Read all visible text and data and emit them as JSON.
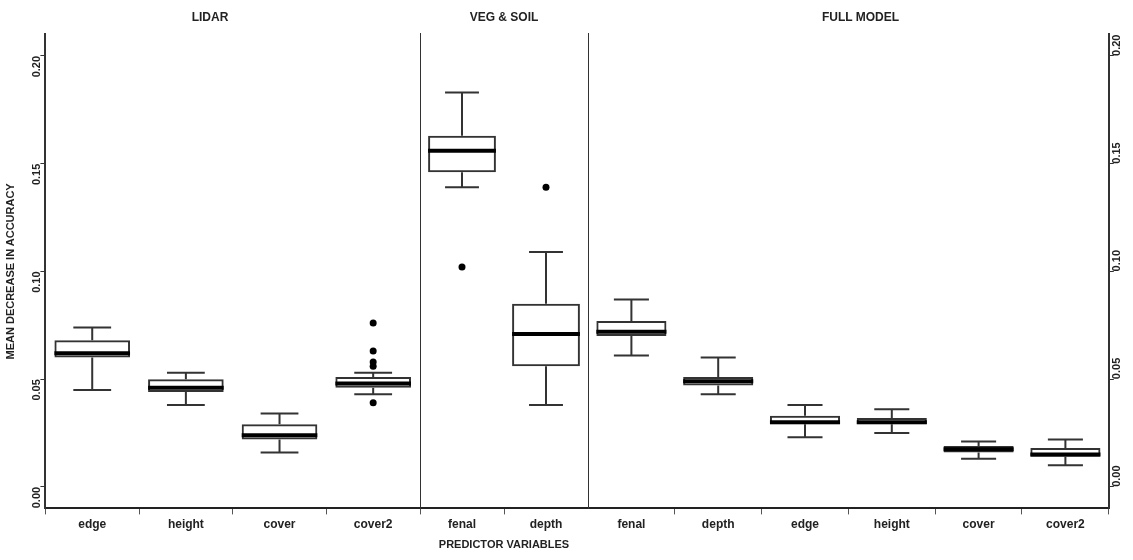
{
  "chart_data": [
    {
      "type": "box",
      "title": "LIDAR",
      "ylabel": "MEAN DECREASE IN ACCURACY",
      "categories": [
        "edge",
        "height",
        "cover",
        "cover2"
      ],
      "color": "#333333",
      "ylim": [
        -0.01,
        0.21
      ],
      "yticks": [
        {
          "value": 0,
          "label": "0.00"
        },
        {
          "value": 0.05,
          "label": "0.05"
        },
        {
          "value": 0.1,
          "label": "0.10"
        },
        {
          "value": 0.15,
          "label": "0.15"
        },
        {
          "value": 0.2,
          "label": "0.20"
        }
      ],
      "boxes": [
        {
          "low": 0.045,
          "q1": 0.06,
          "median": 0.062,
          "q3": 0.068,
          "high": 0.074
        },
        {
          "low": 0.038,
          "q1": 0.044,
          "median": 0.046,
          "q3": 0.05,
          "high": 0.053
        },
        {
          "low": 0.016,
          "q1": 0.022,
          "median": 0.024,
          "q3": 0.029,
          "high": 0.034
        },
        {
          "low": 0.043,
          "q1": 0.046,
          "median": 0.048,
          "q3": 0.051,
          "high": 0.053,
          "outliers": [
            0.076,
            0.063,
            0.058,
            0.056,
            0.039
          ]
        }
      ]
    },
    {
      "type": "box",
      "title": "VEG & SOIL",
      "xlabel": "PREDICTOR VARIABLES",
      "categories": [
        "fenal",
        "depth"
      ],
      "color": "#333333",
      "ylim": [
        -0.01,
        0.21
      ],
      "tick_labels": "x",
      "boxes": [
        {
          "low": 0.139,
          "q1": 0.146,
          "median": 0.156,
          "q3": 0.163,
          "high": 0.183,
          "outliers": [
            0.102
          ]
        },
        {
          "low": 0.038,
          "q1": 0.056,
          "median": 0.071,
          "q3": 0.085,
          "high": 0.109,
          "outliers": [
            0.139
          ]
        }
      ]
    },
    {
      "type": "box",
      "title": "FULL MODEL",
      "categories": [
        "fenal",
        "depth",
        "edge",
        "height",
        "cover",
        "cover2"
      ],
      "y2lim": [
        -0.01,
        0.21
      ],
      "y2ticks": [
        {
          "value": 0,
          "label": "0.00"
        },
        {
          "value": 0.05,
          "label": "0.05"
        },
        {
          "value": 0.1,
          "label": "0.10"
        },
        {
          "value": 0.15,
          "label": "0.15"
        },
        {
          "value": 0.2,
          "label": "0.20"
        }
      ],
      "series": [
        {
          "axis": "y2",
          "color": "#333333",
          "boxes": [
            {
              "low": 0.061,
              "q1": 0.07,
              "median": 0.072,
              "q3": 0.077,
              "high": 0.087
            },
            {
              "low": 0.043,
              "q1": 0.047,
              "median": 0.049,
              "q3": 0.051,
              "high": 0.06
            },
            {
              "low": 0.023,
              "q1": 0.029,
              "median": 0.03,
              "q3": 0.033,
              "high": 0.038
            },
            {
              "low": 0.025,
              "q1": 0.029,
              "median": 0.03,
              "q3": 0.032,
              "high": 0.036
            },
            {
              "low": 0.013,
              "q1": 0.016,
              "median": 0.0175,
              "q3": 0.019,
              "high": 0.021
            },
            {
              "low": 0.01,
              "q1": 0.014,
              "median": 0.015,
              "q3": 0.018,
              "high": 0.022
            }
          ]
        }
      ]
    }
  ]
}
